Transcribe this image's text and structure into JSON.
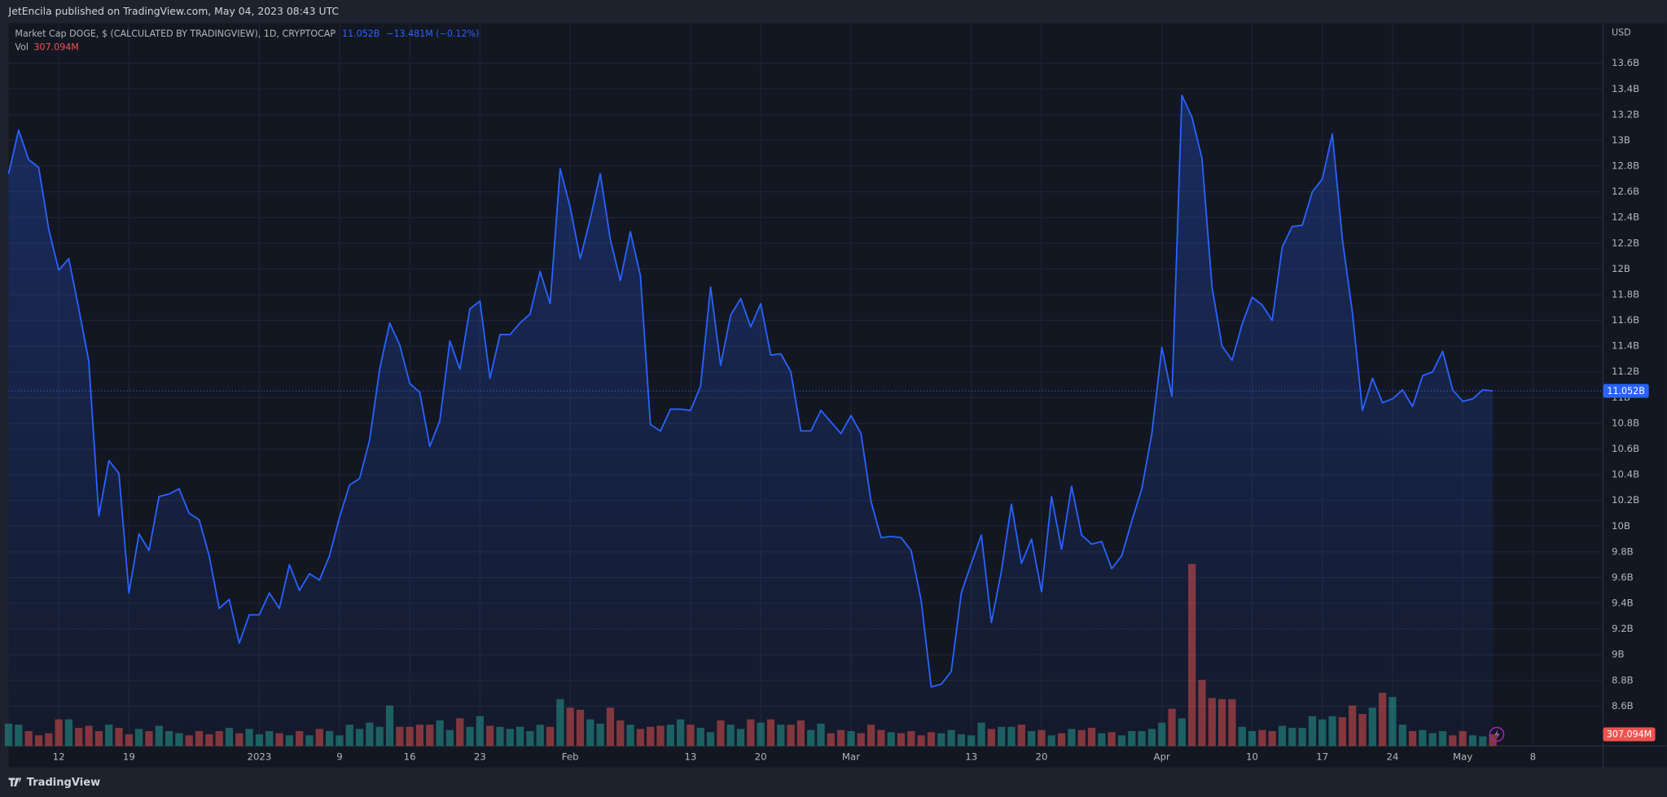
{
  "chart_data": {
    "type": "line",
    "header": "JetEncila published on TradingView.com, May 04, 2023 08:43 UTC",
    "footer": "TradingView",
    "axis_unit": "USD",
    "last_value_label": "11.052B",
    "change_label": "−13.481M (−0.12%)",
    "x": [
      "2022-12-07",
      "2022-12-08",
      "2022-12-09",
      "2022-12-10",
      "2022-12-11",
      "2022-12-12",
      "2022-12-13",
      "2022-12-14",
      "2022-12-15",
      "2022-12-16",
      "2022-12-17",
      "2022-12-18",
      "2022-12-19",
      "2022-12-20",
      "2022-12-21",
      "2022-12-22",
      "2022-12-23",
      "2022-12-24",
      "2022-12-25",
      "2022-12-26",
      "2022-12-27",
      "2022-12-28",
      "2022-12-29",
      "2022-12-30",
      "2022-12-31",
      "2023-01-01",
      "2023-01-02",
      "2023-01-03",
      "2023-01-04",
      "2023-01-05",
      "2023-01-06",
      "2023-01-07",
      "2023-01-08",
      "2023-01-09",
      "2023-01-10",
      "2023-01-11",
      "2023-01-12",
      "2023-01-13",
      "2023-01-14",
      "2023-01-15",
      "2023-01-16",
      "2023-01-17",
      "2023-01-18",
      "2023-01-19",
      "2023-01-20",
      "2023-01-21",
      "2023-01-22",
      "2023-01-23",
      "2023-01-24",
      "2023-01-25",
      "2023-01-26",
      "2023-01-27",
      "2023-01-28",
      "2023-01-29",
      "2023-01-30",
      "2023-01-31",
      "2023-02-01",
      "2023-02-02",
      "2023-02-03",
      "2023-02-04",
      "2023-02-05",
      "2023-02-06",
      "2023-02-07",
      "2023-02-08",
      "2023-02-09",
      "2023-02-10",
      "2023-02-11",
      "2023-02-12",
      "2023-02-13",
      "2023-02-14",
      "2023-02-15",
      "2023-02-16",
      "2023-02-17",
      "2023-02-18",
      "2023-02-19",
      "2023-02-20",
      "2023-02-21",
      "2023-02-22",
      "2023-02-23",
      "2023-02-24",
      "2023-02-25",
      "2023-02-26",
      "2023-02-27",
      "2023-02-28",
      "2023-03-01",
      "2023-03-02",
      "2023-03-03",
      "2023-03-04",
      "2023-03-05",
      "2023-03-06",
      "2023-03-07",
      "2023-03-08",
      "2023-03-09",
      "2023-03-10",
      "2023-03-11",
      "2023-03-12",
      "2023-03-13",
      "2023-03-14",
      "2023-03-15",
      "2023-03-16",
      "2023-03-17",
      "2023-03-18",
      "2023-03-19",
      "2023-03-20",
      "2023-03-21",
      "2023-03-22",
      "2023-03-23",
      "2023-03-24",
      "2023-03-25",
      "2023-03-26",
      "2023-03-27",
      "2023-03-28",
      "2023-03-29",
      "2023-03-30",
      "2023-03-31",
      "2023-04-01",
      "2023-04-02",
      "2023-04-03",
      "2023-04-04",
      "2023-04-05",
      "2023-04-06",
      "2023-04-07",
      "2023-04-08",
      "2023-04-09",
      "2023-04-10",
      "2023-04-11",
      "2023-04-12",
      "2023-04-13",
      "2023-04-14",
      "2023-04-15",
      "2023-04-16",
      "2023-04-17",
      "2023-04-18",
      "2023-04-19",
      "2023-04-20",
      "2023-04-21",
      "2023-04-22",
      "2023-04-23",
      "2023-04-24",
      "2023-04-25",
      "2023-04-26",
      "2023-04-27",
      "2023-04-28",
      "2023-04-29",
      "2023-04-30",
      "2023-05-01",
      "2023-05-02",
      "2023-05-03",
      "2023-05-04"
    ],
    "series": [
      {
        "name": "Market Cap DOGE, $ (CALCULATED BY TRADINGVIEW), 1D, CRYPTOCAP",
        "color": "#2962ff",
        "values": [
          12.74,
          13.08,
          12.85,
          12.79,
          12.31,
          11.99,
          12.08,
          11.69,
          11.28,
          10.08,
          10.51,
          10.41,
          9.48,
          9.94,
          9.81,
          10.23,
          10.25,
          10.29,
          10.1,
          10.05,
          9.77,
          9.36,
          9.43,
          9.09,
          9.31,
          9.31,
          9.48,
          9.36,
          9.7,
          9.5,
          9.63,
          9.58,
          9.77,
          10.07,
          10.32,
          10.37,
          10.67,
          11.22,
          11.58,
          11.41,
          11.11,
          11.04,
          10.62,
          10.82,
          11.44,
          11.22,
          11.69,
          11.75,
          11.15,
          11.49,
          11.49,
          11.58,
          11.65,
          11.98,
          11.73,
          12.78,
          12.48,
          12.08,
          12.39,
          12.74,
          12.23,
          11.91,
          12.29,
          11.95,
          10.79,
          10.74,
          10.91,
          10.91,
          10.9,
          11.09,
          11.86,
          11.25,
          11.64,
          11.77,
          11.55,
          11.73,
          11.33,
          11.34,
          11.2,
          10.74,
          10.74,
          10.9,
          10.81,
          10.72,
          10.86,
          10.72,
          10.19,
          9.91,
          9.92,
          9.91,
          9.81,
          9.42,
          8.75,
          8.77,
          8.87,
          9.48,
          9.71,
          9.93,
          9.25,
          9.65,
          10.17,
          9.71,
          9.9,
          9.49,
          10.23,
          9.82,
          10.31,
          9.93,
          9.86,
          9.88,
          9.67,
          9.77,
          10.04,
          10.29,
          10.72,
          11.39,
          11.01,
          13.35,
          13.18,
          12.86,
          11.86,
          11.4,
          11.29,
          11.57,
          11.78,
          11.72,
          11.6,
          12.17,
          12.33,
          12.34,
          12.6,
          12.7,
          13.05,
          12.23,
          11.66,
          10.9,
          11.15,
          10.96,
          10.99,
          11.06,
          10.93,
          11.17,
          11.2,
          11.36,
          11.06,
          10.97,
          10.99,
          11.06,
          11.052
        ]
      },
      {
        "name": "Vol",
        "axis": "y2",
        "up_color": "#26a69a",
        "down_color": "#ef5350",
        "last_label": "307.094M",
        "values": [
          588,
          560,
          392,
          280,
          336,
          700,
          700,
          476,
          532,
          392,
          560,
          476,
          308,
          448,
          392,
          532,
          392,
          336,
          280,
          392,
          308,
          392,
          476,
          336,
          448,
          308,
          392,
          336,
          280,
          392,
          280,
          448,
          392,
          280,
          560,
          448,
          616,
          504,
          1064,
          504,
          504,
          560,
          560,
          672,
          420,
          728,
          504,
          784,
          532,
          504,
          448,
          504,
          392,
          560,
          504,
          1232,
          1008,
          952,
          700,
          588,
          1008,
          672,
          560,
          448,
          504,
          532,
          560,
          700,
          560,
          476,
          364,
          672,
          560,
          448,
          700,
          616,
          700,
          560,
          560,
          672,
          420,
          588,
          336,
          420,
          392,
          336,
          560,
          420,
          364,
          336,
          392,
          280,
          364,
          336,
          420,
          308,
          280,
          616,
          448,
          504,
          504,
          560,
          392,
          420,
          280,
          336,
          448,
          420,
          476,
          336,
          364,
          280,
          392,
          392,
          448,
          616,
          980,
          728,
          4788,
          1736,
          1260,
          1232,
          1232,
          504,
          392,
          420,
          392,
          532,
          476,
          476,
          784,
          700,
          784,
          756,
          1064,
          840,
          1008,
          1400,
          1288,
          560,
          392,
          420,
          336,
          392,
          280,
          392,
          280,
          252,
          307.094
        ]
      }
    ],
    "xlim": [
      "2022-12-07",
      "2023-05-15"
    ],
    "xticks": [
      {
        "value": "2022-12-12",
        "label": "12"
      },
      {
        "value": "2022-12-19",
        "label": "19"
      },
      {
        "value": "2023-01-01",
        "label": "2023"
      },
      {
        "value": "2023-01-09",
        "label": "9"
      },
      {
        "value": "2023-01-16",
        "label": "16"
      },
      {
        "value": "2023-01-23",
        "label": "23"
      },
      {
        "value": "2023-02-01",
        "label": "Feb"
      },
      {
        "value": "2023-02-13",
        "label": "13"
      },
      {
        "value": "2023-02-20",
        "label": "20"
      },
      {
        "value": "2023-03-01",
        "label": "Mar"
      },
      {
        "value": "2023-03-13",
        "label": "13"
      },
      {
        "value": "2023-03-20",
        "label": "20"
      },
      {
        "value": "2023-04-01",
        "label": "Apr"
      },
      {
        "value": "2023-04-10",
        "label": "10"
      },
      {
        "value": "2023-04-17",
        "label": "17"
      },
      {
        "value": "2023-04-24",
        "label": "24"
      },
      {
        "value": "2023-05-01",
        "label": "May"
      },
      {
        "value": "2023-05-08",
        "label": "8"
      }
    ],
    "ylim": [
      8.29,
      13.91
    ],
    "yticks": [
      {
        "value": 8.6,
        "label": "8.6B"
      },
      {
        "value": 8.8,
        "label": "8.8B"
      },
      {
        "value": 9,
        "label": "9B"
      },
      {
        "value": 9.2,
        "label": "9.2B"
      },
      {
        "value": 9.4,
        "label": "9.4B"
      },
      {
        "value": 9.6,
        "label": "9.6B"
      },
      {
        "value": 9.8,
        "label": "9.8B"
      },
      {
        "value": 10,
        "label": "10B"
      },
      {
        "value": 10.2,
        "label": "10.2B"
      },
      {
        "value": 10.4,
        "label": "10.4B"
      },
      {
        "value": 10.6,
        "label": "10.6B"
      },
      {
        "value": 10.8,
        "label": "10.8B"
      },
      {
        "value": 11,
        "label": "11B"
      },
      {
        "value": 11.2,
        "label": "11.2B"
      },
      {
        "value": 11.4,
        "label": "11.4B"
      },
      {
        "value": 11.6,
        "label": "11.6B"
      },
      {
        "value": 11.8,
        "label": "11.8B"
      },
      {
        "value": 12,
        "label": "12B"
      },
      {
        "value": 12.2,
        "label": "12.2B"
      },
      {
        "value": 12.4,
        "label": "12.4B"
      },
      {
        "value": 12.6,
        "label": "12.6B"
      },
      {
        "value": 12.8,
        "label": "12.8B"
      },
      {
        "value": 13,
        "label": "13B"
      },
      {
        "value": 13.2,
        "label": "13.2B"
      },
      {
        "value": 13.4,
        "label": "13.4B"
      },
      {
        "value": 13.6,
        "label": "13.6B"
      }
    ],
    "y2lim": [
      0,
      19000
    ],
    "grid": true
  }
}
